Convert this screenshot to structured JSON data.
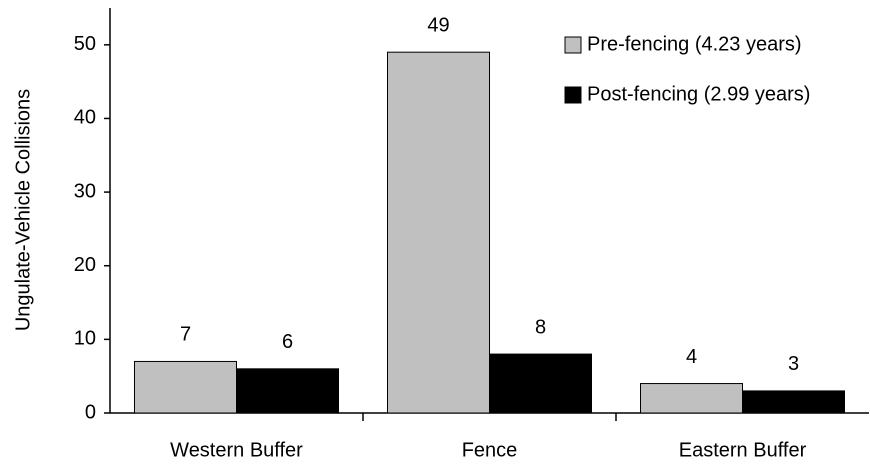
{
  "chart_data": {
    "type": "bar",
    "y_label": "Ungulate-Vehicle Collisions",
    "categories": [
      "Western Buffer",
      "Fence",
      "Eastern Buffer"
    ],
    "series": [
      {
        "name": "Pre-fencing (4.23 years)",
        "color": "#c0c0c0",
        "values": [
          7,
          49,
          4
        ]
      },
      {
        "name": "Post-fencing (2.99 years)",
        "color": "#000000",
        "values": [
          6,
          8,
          3
        ]
      }
    ],
    "ylim": [
      0,
      55
    ],
    "yticks": [
      0,
      10,
      20,
      30,
      40,
      50
    ],
    "grid": false,
    "legend": "top-right"
  }
}
